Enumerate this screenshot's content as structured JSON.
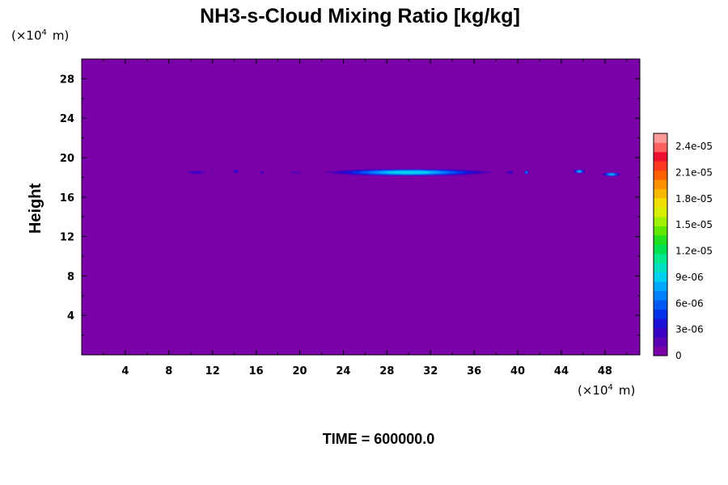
{
  "chart_data": {
    "type": "heatmap",
    "title": "NH3-s-Cloud Mixing Ratio [kg/kg]",
    "xlabel": "",
    "ylabel": "Height",
    "x_unit_prefix": "(×10",
    "x_unit_exp": "4",
    "x_unit_suffix": "m)",
    "y_unit_prefix": "(×10",
    "y_unit_exp": "4",
    "y_unit_suffix": "m)",
    "xlim": [
      0,
      51.2
    ],
    "ylim": [
      0,
      30
    ],
    "xticks": [
      4,
      8,
      12,
      16,
      20,
      24,
      28,
      32,
      36,
      40,
      44,
      48
    ],
    "yticks": [
      4,
      8,
      12,
      16,
      20,
      24,
      28
    ],
    "background_value": 0,
    "cloud_features": [
      {
        "x_start": 9.3,
        "x_end": 11.7,
        "y": 18.5,
        "peak": 3e-06
      },
      {
        "x_start": 11.9,
        "x_end": 12.2,
        "y": 18.7,
        "peak": 2e-06
      },
      {
        "x_start": 13.8,
        "x_end": 14.5,
        "y": 18.6,
        "peak": 4e-06
      },
      {
        "x_start": 16.3,
        "x_end": 16.8,
        "y": 18.5,
        "peak": 3e-06
      },
      {
        "x_start": 18.8,
        "x_end": 20.5,
        "y": 18.5,
        "peak": 2e-06
      },
      {
        "x_start": 21.5,
        "x_end": 38.5,
        "y": 18.5,
        "peak": 9e-06
      },
      {
        "x_start": 38.8,
        "x_end": 39.8,
        "y": 18.5,
        "peak": 3e-06
      },
      {
        "x_start": 40.5,
        "x_end": 41.1,
        "y": 18.5,
        "peak": 7e-06
      },
      {
        "x_start": 45.0,
        "x_end": 46.3,
        "y": 18.6,
        "peak": 8e-06
      },
      {
        "x_start": 47.6,
        "x_end": 49.6,
        "y": 18.3,
        "peak": 8e-06
      }
    ],
    "colorbar": {
      "ticks": [
        "0",
        "3e-06",
        "6e-06",
        "9e-06",
        "1.2e-05",
        "1.5e-05",
        "1.8e-05",
        "2.1e-05",
        "2.4e-05"
      ],
      "min": 0,
      "max": 2.55e-05,
      "colors": [
        "#7a00a8",
        "#5a00b4",
        "#3a00c4",
        "#1a10d8",
        "#0030e8",
        "#0058f4",
        "#0080ff",
        "#00a8ff",
        "#00d0f0",
        "#00e0c0",
        "#00e890",
        "#00e050",
        "#20e020",
        "#60e800",
        "#a0f000",
        "#d8f000",
        "#f0e000",
        "#f8b800",
        "#ff9000",
        "#ff6000",
        "#ff3820",
        "#f01030",
        "#ff6060",
        "#ff9a9a"
      ]
    },
    "time_label": "TIME = 600000.0"
  }
}
